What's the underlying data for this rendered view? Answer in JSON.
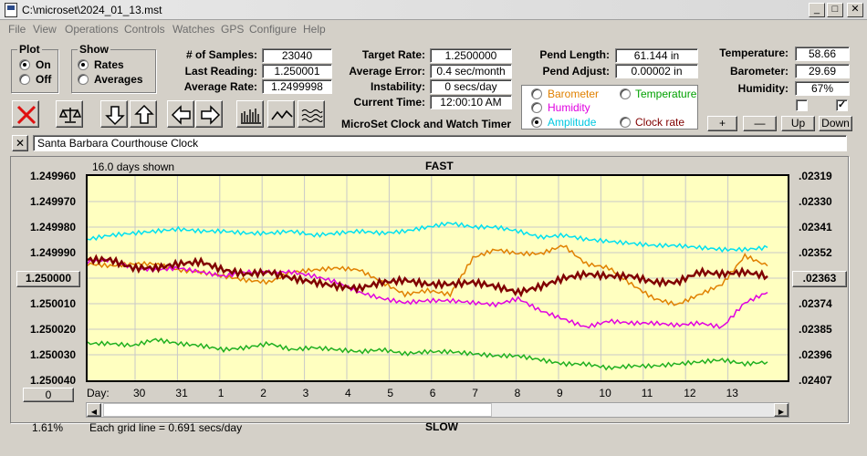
{
  "window": {
    "title": "C:\\microset\\2024_01_13.mst",
    "controls": [
      "_",
      "□",
      "✕"
    ]
  },
  "menu": [
    "File",
    "View",
    "Operations",
    "Controls",
    "Watches",
    "GPS",
    "Configure",
    "Help"
  ],
  "plot_group": {
    "title": "Plot",
    "options": [
      {
        "label": "On",
        "selected": true
      },
      {
        "label": "Off",
        "selected": false
      }
    ]
  },
  "show_group": {
    "title": "Show",
    "options": [
      {
        "label": "Rates",
        "selected": true
      },
      {
        "label": "Averages",
        "selected": false
      }
    ]
  },
  "stats": {
    "samples_label": "# of Samples:",
    "samples": "23040",
    "last_reading_label": "Last Reading:",
    "last_reading": "1.250001",
    "average_rate_label": "Average Rate:",
    "average_rate": "1.2499998",
    "target_rate_label": "Target Rate:",
    "target_rate": "1.2500000",
    "average_error_label": "Average Error:",
    "average_error": "0.4 sec/month",
    "instability_label": "Instability:",
    "instability": "0 secs/day",
    "current_time_label": "Current Time:",
    "current_time": "12:00:10 AM",
    "pend_length_label": "Pend Length:",
    "pend_length": "61.144 in",
    "pend_adjust_label": "Pend Adjust:",
    "pend_adjust": "0.00002 in",
    "temperature_label": "Temperature:",
    "temperature": "58.66",
    "barometer_label": "Barometer:",
    "barometer": "29.69",
    "humidity_label": "Humidity:",
    "humidity": "67%"
  },
  "app_caption": "MicroSet Clock and Watch Timer",
  "series_select": [
    {
      "label": "Barometer",
      "color": "#e08000",
      "selected": false
    },
    {
      "label": "Temperature",
      "color": "#00a000",
      "selected": false
    },
    {
      "label": "Humidity",
      "color": "#e000e0",
      "selected": false
    },
    {
      "label": "Clock rate",
      "color": "#800000",
      "selected": false
    },
    {
      "label": "Amplitude",
      "color": "#00c8e0",
      "selected": true
    }
  ],
  "scale_buttons": {
    "plus": "+",
    "minus": "—",
    "up": "Up",
    "down": "Down"
  },
  "checkboxes": [
    false,
    true
  ],
  "clock_name": "Santa Barbara Courthouse Clock",
  "clear_name_button": "✕",
  "plot": {
    "days_shown": "16.0 days shown",
    "top_label": "FAST",
    "bottom_label": "SLOW",
    "day_prefix": "Day:",
    "grid_note": "Each grid line = 0.691 secs/day",
    "percent": "1.61%",
    "left_center_button": "1.250000",
    "right_center_button": ".02363",
    "bottom_left_button": "0"
  },
  "chart_data": {
    "type": "line",
    "left_axis": {
      "ticks": [
        "1.249960",
        "1.249970",
        "1.249980",
        "1.249990",
        "1.250000",
        "1.250010",
        "1.250020",
        "1.250030",
        "1.250040"
      ],
      "range": [
        1.24996,
        1.25004
      ]
    },
    "right_axis": {
      "ticks": [
        ".02319",
        ".02330",
        ".02341",
        ".02352",
        ".02363",
        ".02374",
        ".02385",
        ".02396",
        ".02407"
      ]
    },
    "days": [
      "30",
      "31",
      "1",
      "2",
      "3",
      "4",
      "5",
      "6",
      "7",
      "8",
      "9",
      "10",
      "11",
      "12",
      "13"
    ],
    "series": [
      {
        "color": "#00e0f0",
        "values": [
          0.31,
          0.29,
          0.28,
          0.27,
          0.26,
          0.27,
          0.27,
          0.28,
          0.28,
          0.27,
          0.29,
          0.28,
          0.27,
          0.28,
          0.27,
          0.25,
          0.23,
          0.25,
          0.25,
          0.27,
          0.3,
          0.29,
          0.31,
          0.32,
          0.33,
          0.34,
          0.34,
          0.35,
          0.36,
          0.36,
          0.35
        ]
      },
      {
        "color": "#e08000",
        "values": [
          0.43,
          0.44,
          0.43,
          0.43,
          0.46,
          0.47,
          0.49,
          0.51,
          0.52,
          0.47,
          0.46,
          0.45,
          0.46,
          0.52,
          0.58,
          0.56,
          0.58,
          0.4,
          0.36,
          0.38,
          0.38,
          0.34,
          0.43,
          0.45,
          0.53,
          0.6,
          0.63,
          0.58,
          0.53,
          0.39,
          0.44
        ]
      },
      {
        "color": "#e000e0",
        "values": [
          0.42,
          0.41,
          0.45,
          0.46,
          0.45,
          0.47,
          0.49,
          0.47,
          0.47,
          0.47,
          0.49,
          0.52,
          0.57,
          0.6,
          0.62,
          0.61,
          0.61,
          0.62,
          0.63,
          0.6,
          0.66,
          0.7,
          0.74,
          0.71,
          0.72,
          0.72,
          0.73,
          0.72,
          0.74,
          0.62,
          0.57
        ]
      },
      {
        "color": "#800000",
        "values": [
          0.41,
          0.41,
          0.45,
          0.45,
          0.43,
          0.42,
          0.46,
          0.48,
          0.47,
          0.5,
          0.52,
          0.54,
          0.55,
          0.52,
          0.51,
          0.53,
          0.53,
          0.52,
          0.54,
          0.57,
          0.54,
          0.5,
          0.48,
          0.49,
          0.49,
          0.52,
          0.52,
          0.47,
          0.48,
          0.47,
          0.49
        ]
      },
      {
        "color": "#20b020",
        "values": [
          0.82,
          0.82,
          0.83,
          0.8,
          0.82,
          0.83,
          0.85,
          0.84,
          0.82,
          0.85,
          0.84,
          0.85,
          0.86,
          0.85,
          0.87,
          0.86,
          0.86,
          0.87,
          0.88,
          0.88,
          0.9,
          0.92,
          0.92,
          0.94,
          0.93,
          0.93,
          0.92,
          0.91,
          0.9,
          0.92,
          0.91
        ]
      }
    ]
  }
}
